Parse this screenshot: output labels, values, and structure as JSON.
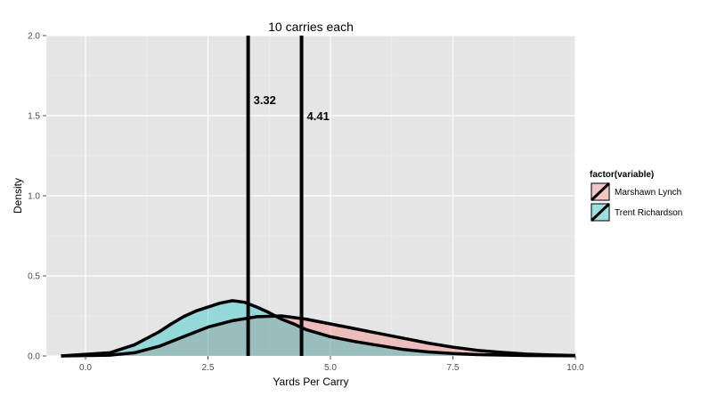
{
  "chart_data": {
    "type": "area",
    "title": "10 carries each",
    "xlabel": "Yards Per Carry",
    "ylabel": "Density",
    "xlim": [
      -0.8,
      10.0
    ],
    "ylim": [
      0,
      2.0
    ],
    "x_ticks": [
      0.0,
      2.5,
      5.0,
      7.5,
      10.0
    ],
    "x_tick_labels": [
      "0.0",
      "2.5",
      "5.0",
      "7.5",
      "10.0"
    ],
    "y_ticks": [
      0.0,
      0.5,
      1.0,
      1.5,
      2.0
    ],
    "y_tick_labels": [
      "0.0",
      "0.5",
      "1.0",
      "1.5",
      "2.0"
    ],
    "grid": true,
    "legend": {
      "title": "factor(variable)",
      "placement": "right"
    },
    "series": [
      {
        "name": "Marshawn Lynch",
        "fill": "#f8766d",
        "x": [
          -0.5,
          0.5,
          1.0,
          1.5,
          2.0,
          2.5,
          3.0,
          3.5,
          4.0,
          4.5,
          5.0,
          5.5,
          6.0,
          6.5,
          7.0,
          7.5,
          8.0,
          8.5,
          9.0,
          9.5,
          10.0
        ],
        "y": [
          0.0,
          0.005,
          0.02,
          0.06,
          0.12,
          0.18,
          0.22,
          0.245,
          0.25,
          0.23,
          0.2,
          0.17,
          0.14,
          0.11,
          0.08,
          0.055,
          0.035,
          0.022,
          0.012,
          0.006,
          0.003
        ]
      },
      {
        "name": "Trent Richardson",
        "fill": "#00bfc4",
        "x": [
          -0.5,
          0.5,
          1.0,
          1.5,
          1.75,
          2.0,
          2.25,
          2.5,
          2.75,
          3.0,
          3.25,
          3.5,
          3.75,
          4.0,
          4.25,
          4.5,
          5.0,
          5.5,
          6.0,
          6.5,
          7.0,
          7.5,
          8.0,
          9.0,
          10.0
        ],
        "y": [
          0.0,
          0.02,
          0.07,
          0.15,
          0.2,
          0.245,
          0.28,
          0.305,
          0.33,
          0.345,
          0.335,
          0.305,
          0.27,
          0.23,
          0.2,
          0.165,
          0.12,
          0.09,
          0.065,
          0.04,
          0.025,
          0.015,
          0.008,
          0.003,
          0.001
        ]
      }
    ],
    "vlines": [
      {
        "x": 3.32,
        "label": "3.32",
        "label_y": 1.6
      },
      {
        "x": 4.41,
        "label": "4.41",
        "label_y": 1.5
      }
    ]
  }
}
